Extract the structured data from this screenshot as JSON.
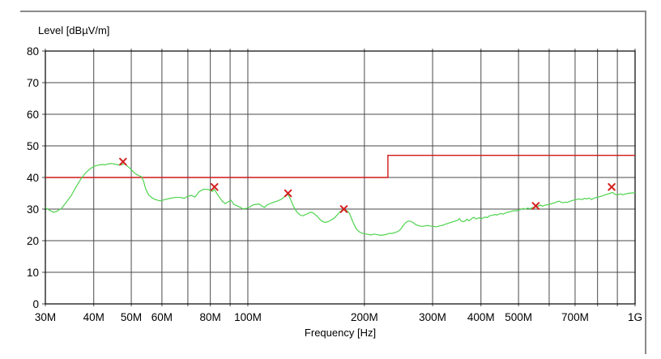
{
  "chart_data": {
    "type": "line",
    "y_axis_title": "Level [dBµV/m]",
    "x_axis_title": "Frequency [Hz]",
    "x_scale": "log",
    "x_range_mhz": [
      30,
      1000
    ],
    "y_range": [
      0,
      80
    ],
    "y_tick_step": 10,
    "grid": "on",
    "legend": "none",
    "y_ticks": [
      {
        "value": 80,
        "label": "80"
      },
      {
        "value": 70,
        "label": "70"
      },
      {
        "value": 60,
        "label": "60"
      },
      {
        "value": 50,
        "label": "50"
      },
      {
        "value": 40,
        "label": "40"
      },
      {
        "value": 30,
        "label": "30"
      },
      {
        "value": 20,
        "label": "20"
      },
      {
        "value": 10,
        "label": "10"
      },
      {
        "value": 0,
        "label": "0"
      }
    ],
    "x_ticks": [
      {
        "freq_mhz": 30,
        "label": "30M"
      },
      {
        "freq_mhz": 40,
        "label": "40M"
      },
      {
        "freq_mhz": 50,
        "label": "50M"
      },
      {
        "freq_mhz": 60,
        "label": "60M"
      },
      {
        "freq_mhz": 80,
        "label": "80M"
      },
      {
        "freq_mhz": 100,
        "label": "100M"
      },
      {
        "freq_mhz": 200,
        "label": "200M"
      },
      {
        "freq_mhz": 300,
        "label": "300M"
      },
      {
        "freq_mhz": 400,
        "label": "400M"
      },
      {
        "freq_mhz": 500,
        "label": "500M"
      },
      {
        "freq_mhz": 700,
        "label": "700M"
      },
      {
        "freq_mhz": 1000,
        "label": "1G"
      }
    ],
    "gridlines_mhz": [
      30,
      40,
      50,
      60,
      70,
      80,
      90,
      100,
      200,
      300,
      400,
      500,
      600,
      700,
      800,
      900,
      1000
    ],
    "colors": {
      "trace": "#4ed34e",
      "limit": "#d01818",
      "marker": "#d42020",
      "grid": "#4a4a4a",
      "axis": "#000000",
      "window_border": "#8a8a8a"
    },
    "series": [
      {
        "name": "measurement-trace",
        "color": "#4ed34e",
        "points_mhz_db": [
          [
            30,
            30.4
          ],
          [
            31,
            29.4
          ],
          [
            31.5,
            29.0
          ],
          [
            32,
            29.2
          ],
          [
            33,
            30.2
          ],
          [
            34,
            32.2
          ],
          [
            35,
            34.3
          ],
          [
            36,
            37.0
          ],
          [
            37,
            39.4
          ],
          [
            38,
            41.3
          ],
          [
            39,
            42.6
          ],
          [
            40,
            43.5
          ],
          [
            41,
            43.9
          ],
          [
            42,
            44.1
          ],
          [
            42.8,
            44.0
          ],
          [
            43.5,
            44.3
          ],
          [
            44.5,
            44.4
          ],
          [
            45.5,
            44.2
          ],
          [
            46.5,
            43.9
          ],
          [
            47.3,
            44.1
          ],
          [
            48,
            44.4
          ],
          [
            48.8,
            43.6
          ],
          [
            49.5,
            43.0
          ],
          [
            50.5,
            41.9
          ],
          [
            51.5,
            41.0
          ],
          [
            52.5,
            40.5
          ],
          [
            53.2,
            40.2
          ],
          [
            53.8,
            38.8
          ],
          [
            54.5,
            36.3
          ],
          [
            55.5,
            34.4
          ],
          [
            56.5,
            33.6
          ],
          [
            57.5,
            33.1
          ],
          [
            58.5,
            32.8
          ],
          [
            59.5,
            32.6
          ],
          [
            61,
            33.0
          ],
          [
            63,
            33.4
          ],
          [
            65,
            33.7
          ],
          [
            67,
            33.7
          ],
          [
            68.5,
            33.4
          ],
          [
            70,
            34.1
          ],
          [
            71.5,
            34.3
          ],
          [
            73,
            33.8
          ],
          [
            75,
            35.6
          ],
          [
            77,
            36.3
          ],
          [
            79,
            36.2
          ],
          [
            81,
            35.6
          ],
          [
            82,
            36.2
          ],
          [
            83,
            35.1
          ],
          [
            84.5,
            33.7
          ],
          [
            86,
            32.4
          ],
          [
            87.5,
            31.7
          ],
          [
            89,
            32.3
          ],
          [
            90.5,
            32.8
          ],
          [
            92,
            31.5
          ],
          [
            93.5,
            31.1
          ],
          [
            95.5,
            30.6
          ],
          [
            97,
            30.1
          ],
          [
            99,
            30.2
          ],
          [
            101,
            30.6
          ],
          [
            103,
            31.3
          ],
          [
            105,
            31.5
          ],
          [
            107,
            31.6
          ],
          [
            109,
            30.9
          ],
          [
            110.5,
            30.5
          ],
          [
            112,
            31.3
          ],
          [
            114,
            31.7
          ],
          [
            116,
            32.1
          ],
          [
            119,
            32.5
          ],
          [
            122,
            33.1
          ],
          [
            125,
            34.1
          ],
          [
            127,
            34.7
          ],
          [
            129,
            33.0
          ],
          [
            131,
            31.0
          ],
          [
            133,
            29.6
          ],
          [
            135,
            28.6
          ],
          [
            137,
            28.0
          ],
          [
            139,
            27.9
          ],
          [
            141,
            28.3
          ],
          [
            143,
            28.6
          ],
          [
            145,
            29.0
          ],
          [
            147,
            28.9
          ],
          [
            149,
            28.3
          ],
          [
            151,
            27.8
          ],
          [
            153,
            26.9
          ],
          [
            155,
            26.3
          ],
          [
            157,
            25.9
          ],
          [
            159,
            25.8
          ],
          [
            161,
            26.0
          ],
          [
            164,
            26.5
          ],
          [
            167,
            27.1
          ],
          [
            170,
            28.1
          ],
          [
            173,
            29.2
          ],
          [
            176,
            29.7
          ],
          [
            178,
            29.8
          ],
          [
            180,
            29.5
          ],
          [
            183,
            28.7
          ],
          [
            185,
            27.2
          ],
          [
            187,
            25.8
          ],
          [
            189,
            24.6
          ],
          [
            191,
            23.6
          ],
          [
            194,
            22.8
          ],
          [
            197,
            22.4
          ],
          [
            200,
            22.2
          ],
          [
            204,
            22.0
          ],
          [
            208,
            21.8
          ],
          [
            212,
            22.1
          ],
          [
            216,
            21.9
          ],
          [
            220,
            21.7
          ],
          [
            224,
            21.8
          ],
          [
            228,
            22.0
          ],
          [
            232,
            22.3
          ],
          [
            236,
            22.3
          ],
          [
            240,
            22.6
          ],
          [
            244,
            22.9
          ],
          [
            248,
            23.6
          ],
          [
            252,
            24.8
          ],
          [
            256,
            25.8
          ],
          [
            260,
            26.2
          ],
          [
            264,
            26.1
          ],
          [
            268,
            25.6
          ],
          [
            272,
            25.0
          ],
          [
            277,
            24.7
          ],
          [
            282,
            24.5
          ],
          [
            287,
            24.7
          ],
          [
            292,
            24.8
          ],
          [
            297,
            24.6
          ],
          [
            302,
            24.5
          ],
          [
            307,
            24.4
          ],
          [
            313,
            24.7
          ],
          [
            319,
            24.9
          ],
          [
            325,
            25.3
          ],
          [
            331,
            25.6
          ],
          [
            337,
            25.9
          ],
          [
            343,
            26.2
          ],
          [
            349,
            26.5
          ],
          [
            352,
            27.0
          ],
          [
            355,
            26.3
          ],
          [
            360,
            26.0
          ],
          [
            364,
            26.2
          ],
          [
            368,
            26.8
          ],
          [
            372,
            26.3
          ],
          [
            376,
            26.6
          ],
          [
            380,
            27.2
          ],
          [
            384,
            27.4
          ],
          [
            388,
            26.9
          ],
          [
            392,
            27.0
          ],
          [
            396,
            27.3
          ],
          [
            400,
            26.9
          ],
          [
            405,
            27.2
          ],
          [
            410,
            27.5
          ],
          [
            415,
            27.3
          ],
          [
            420,
            27.8
          ],
          [
            425,
            28.0
          ],
          [
            430,
            28.1
          ],
          [
            435,
            28.3
          ],
          [
            440,
            28.1
          ],
          [
            445,
            28.4
          ],
          [
            450,
            28.6
          ],
          [
            456,
            28.4
          ],
          [
            462,
            28.7
          ],
          [
            468,
            29.0
          ],
          [
            474,
            29.1
          ],
          [
            480,
            29.3
          ],
          [
            487,
            29.5
          ],
          [
            494,
            29.4
          ],
          [
            500,
            29.7
          ],
          [
            507,
            29.9
          ],
          [
            514,
            30.2
          ],
          [
            521,
            30.0
          ],
          [
            528,
            30.3
          ],
          [
            535,
            30.1
          ],
          [
            542,
            30.4
          ],
          [
            549,
            30.6
          ],
          [
            556,
            30.8
          ],
          [
            563,
            31.0
          ],
          [
            570,
            31.3
          ],
          [
            577,
            30.9
          ],
          [
            584,
            31.2
          ],
          [
            591,
            31.4
          ],
          [
            598,
            31.3
          ],
          [
            605,
            31.6
          ],
          [
            612,
            31.8
          ],
          [
            620,
            32.0
          ],
          [
            628,
            32.3
          ],
          [
            636,
            32.5
          ],
          [
            644,
            32.2
          ],
          [
            652,
            32.0
          ],
          [
            660,
            32.2
          ],
          [
            668,
            32.1
          ],
          [
            676,
            32.4
          ],
          [
            684,
            32.6
          ],
          [
            692,
            32.8
          ],
          [
            700,
            32.9
          ],
          [
            710,
            33.1
          ],
          [
            720,
            33.2
          ],
          [
            730,
            33.0
          ],
          [
            740,
            33.4
          ],
          [
            750,
            33.2
          ],
          [
            760,
            33.5
          ],
          [
            772,
            33.0
          ],
          [
            784,
            33.5
          ],
          [
            796,
            33.7
          ],
          [
            808,
            33.9
          ],
          [
            820,
            34.1
          ],
          [
            832,
            34.4
          ],
          [
            844,
            34.6
          ],
          [
            856,
            34.9
          ],
          [
            868,
            35.1
          ],
          [
            875,
            35.3
          ],
          [
            882,
            34.9
          ],
          [
            890,
            34.6
          ],
          [
            900,
            34.4
          ],
          [
            910,
            34.7
          ],
          [
            920,
            34.8
          ],
          [
            930,
            34.5
          ],
          [
            941,
            34.7
          ],
          [
            952,
            34.9
          ],
          [
            964,
            35.0
          ],
          [
            976,
            35.1
          ],
          [
            988,
            35.1
          ],
          [
            1000,
            35.3
          ]
        ]
      },
      {
        "name": "limit-line",
        "color": "#d01818",
        "points_mhz_db": [
          [
            30,
            40
          ],
          [
            230,
            40
          ],
          [
            230,
            47
          ],
          [
            1000,
            47
          ]
        ]
      }
    ],
    "markers": {
      "name": "final-measurement-markers",
      "symbol": "x",
      "color": "#d42020",
      "points_mhz_db": [
        [
          47.6,
          45.0
        ],
        [
          82.0,
          37.0
        ],
        [
          127.0,
          35.0
        ],
        [
          177.0,
          30.0
        ],
        [
          554.0,
          31.0
        ],
        [
          870.0,
          37.0
        ]
      ]
    }
  }
}
